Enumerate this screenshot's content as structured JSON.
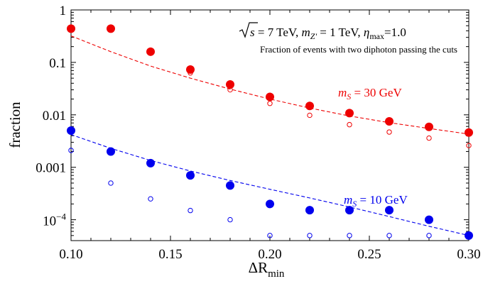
{
  "chart_data": {
    "type": "scatter",
    "xlabel": "ΔR",
    "xlabel_sub": "min",
    "ylabel": "fraction",
    "xlim": [
      0.1,
      0.3
    ],
    "ylim": [
      4e-05,
      1
    ],
    "yscale": "log",
    "x_ticks": [
      0.1,
      0.15,
      0.2,
      0.25,
      0.3
    ],
    "x_tick_labels": [
      "0.10",
      "0.15",
      "0.20",
      "0.25",
      "0.30"
    ],
    "y_ticks": [
      1,
      0.1,
      0.01,
      0.001
    ],
    "y_tick_labels": [
      "1",
      "0.1",
      "0.01",
      "0.001"
    ],
    "y_tick_power": {
      "value": 0.0001,
      "base": "10",
      "exp": "−4"
    },
    "annotation": {
      "line1": {
        "sqrt": "s",
        "eq1": " = 7 TeV, ",
        "m": "m",
        "m_sub": "Z'",
        "eq2": " = 1 TeV, ",
        "eta": "η",
        "eta_sub": "max",
        "eq3": "=1.0"
      },
      "line2": "Fraction of events with two diphoton passing the cuts"
    },
    "series": [
      {
        "label_m": "m",
        "label_sub": "S",
        "label_text": " = 30 GeV",
        "color": "#ee0000",
        "x": [
          0.1,
          0.12,
          0.14,
          0.16,
          0.18,
          0.2,
          0.22,
          0.24,
          0.26,
          0.28,
          0.3
        ],
        "filled": [
          0.44,
          0.44,
          0.16,
          0.073,
          0.038,
          0.022,
          0.0148,
          0.0108,
          0.0075,
          0.0059,
          0.0046
        ],
        "open": [
          0.42,
          0.42,
          0.15,
          0.063,
          0.03,
          0.0165,
          0.0098,
          0.0065,
          0.0047,
          0.0036,
          0.0026
        ],
        "fit": [
          0.32,
          0.16,
          0.085,
          0.05,
          0.031,
          0.02,
          0.0135,
          0.0095,
          0.0071,
          0.0055,
          0.0043
        ]
      },
      {
        "label_m": "m",
        "label_sub": "S",
        "label_text": " = 10 GeV",
        "color": "#0000ee",
        "x": [
          0.1,
          0.12,
          0.14,
          0.16,
          0.18,
          0.2,
          0.22,
          0.24,
          0.26,
          0.28,
          0.3
        ],
        "filled": [
          0.005,
          0.002,
          0.0012,
          0.0007,
          0.00045,
          0.0002,
          0.000152,
          0.000152,
          0.000152,
          0.0001,
          5e-05
        ],
        "open": [
          0.0021,
          0.0005,
          0.00025,
          0.00015,
          0.0001,
          5e-05,
          5e-05,
          5e-05,
          5e-05,
          5e-05,
          5e-05
        ],
        "fit": [
          0.0042,
          0.0023,
          0.00135,
          0.00085,
          0.00056,
          0.00038,
          0.00026,
          0.000175,
          0.000115,
          7.5e-05,
          5e-05
        ]
      }
    ]
  }
}
